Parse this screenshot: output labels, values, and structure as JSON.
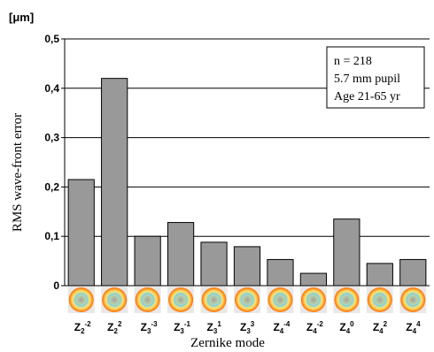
{
  "chart_data": {
    "type": "bar",
    "unit_label": "[μm]",
    "ylabel": "RMS wave-front error",
    "xlabel": "Zernike mode",
    "ylim": [
      0,
      0.5
    ],
    "yticks": [
      "0",
      "0,1",
      "0,2",
      "0,3",
      "0,4",
      "0,5"
    ],
    "grid": true,
    "categories": [
      {
        "main": "Z",
        "sub": "2",
        "sup": "-2",
        "icon": "zernike-pattern-icon"
      },
      {
        "main": "Z",
        "sub": "2",
        "sup": "2",
        "icon": "zernike-pattern-icon"
      },
      {
        "main": "Z",
        "sub": "3",
        "sup": "-3",
        "icon": "zernike-pattern-icon"
      },
      {
        "main": "Z",
        "sub": "3",
        "sup": "-1",
        "icon": "zernike-pattern-icon"
      },
      {
        "main": "Z",
        "sub": "3",
        "sup": "1",
        "icon": "zernike-pattern-icon"
      },
      {
        "main": "Z",
        "sub": "3",
        "sup": "3",
        "icon": "zernike-pattern-icon"
      },
      {
        "main": "Z",
        "sub": "4",
        "sup": "-4",
        "icon": "zernike-pattern-icon"
      },
      {
        "main": "Z",
        "sub": "4",
        "sup": "-2",
        "icon": "zernike-pattern-icon"
      },
      {
        "main": "Z",
        "sub": "4",
        "sup": "0",
        "icon": "zernike-pattern-icon"
      },
      {
        "main": "Z",
        "sub": "4",
        "sup": "2",
        "icon": "zernike-pattern-icon"
      },
      {
        "main": "Z",
        "sub": "4",
        "sup": "4",
        "icon": "zernike-pattern-icon"
      }
    ],
    "values": [
      0.215,
      0.42,
      0.1,
      0.128,
      0.088,
      0.079,
      0.053,
      0.025,
      0.135,
      0.045,
      0.053
    ],
    "annotation": [
      "n = 218",
      "5.7 mm pupil",
      "Age 21-65 yr"
    ],
    "colors": {
      "bar": "#999999",
      "icon_outer": "#ff6a00",
      "icon_mid": "#ffe36a",
      "icon_inner": "#3a4fd8"
    }
  }
}
